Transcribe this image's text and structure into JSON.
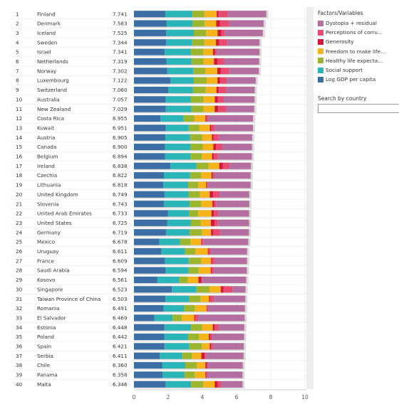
{
  "legend": {
    "title": "Factors/Variables",
    "items": [
      {
        "label": "Dystopia + residual",
        "color": "#b46e9f"
      },
      {
        "label": "Perceptions of corru...",
        "color": "#e84a70"
      },
      {
        "label": "Generosity",
        "color": "#d3183a"
      },
      {
        "label": "Freedom to make life...",
        "color": "#f4b41a"
      },
      {
        "label": "Healthy life expecta...",
        "color": "#9bb62e"
      },
      {
        "label": "Social support",
        "color": "#2ab5b8"
      },
      {
        "label": "Log GDP per capita",
        "color": "#3a6ea5"
      }
    ]
  },
  "search": {
    "label": "Search by country",
    "placeholder": ""
  },
  "chart_data": {
    "type": "bar",
    "orientation": "horizontal",
    "stacked": true,
    "xlim": [
      0,
      10
    ],
    "x_ticks": [
      "0",
      "2",
      "4",
      "6",
      "8",
      "10"
    ],
    "series_order": [
      "Log GDP per capita",
      "Social support",
      "Healthy life expecta...",
      "Freedom to make life...",
      "Generosity",
      "Perceptions of corru...",
      "Dystopia + residual"
    ],
    "rows": [
      {
        "rank": "1",
        "country": "Finland",
        "score": "7.741",
        "parts": [
          1.84,
          1.57,
          0.7,
          0.73,
          0.1,
          0.55,
          2.25
        ]
      },
      {
        "rank": "2",
        "country": "Denmark",
        "score": "7.583",
        "parts": [
          1.91,
          1.52,
          0.7,
          0.68,
          0.21,
          0.52,
          2.04
        ]
      },
      {
        "rank": "3",
        "country": "Iceland",
        "score": "7.525",
        "parts": [
          1.88,
          1.62,
          0.72,
          0.67,
          0.22,
          0.19,
          2.23
        ]
      },
      {
        "rank": "4",
        "country": "Sweden",
        "score": "7.344",
        "parts": [
          1.88,
          1.5,
          0.73,
          0.68,
          0.19,
          0.47,
          1.89
        ]
      },
      {
        "rank": "5",
        "country": "Israel",
        "score": "7.341",
        "parts": [
          1.8,
          1.51,
          0.74,
          0.57,
          0.11,
          0.11,
          2.5
        ]
      },
      {
        "rank": "6",
        "country": "Netherlands",
        "score": "7.319",
        "parts": [
          1.9,
          1.46,
          0.7,
          0.62,
          0.21,
          0.38,
          2.05
        ]
      },
      {
        "rank": "7",
        "country": "Norway",
        "score": "7.302",
        "parts": [
          1.95,
          1.52,
          0.7,
          0.7,
          0.21,
          0.47,
          1.75
        ]
      },
      {
        "rank": "8",
        "country": "Luxembourg",
        "score": "7.122",
        "parts": [
          2.14,
          1.36,
          0.75,
          0.63,
          0.16,
          0.39,
          1.69
        ]
      },
      {
        "rank": "9",
        "country": "Switzerland",
        "score": "7.060",
        "parts": [
          2.0,
          1.44,
          0.75,
          0.64,
          0.12,
          0.45,
          1.66
        ]
      },
      {
        "rank": "10",
        "country": "Australia",
        "score": "7.057",
        "parts": [
          1.85,
          1.48,
          0.74,
          0.66,
          0.17,
          0.35,
          1.8
        ]
      },
      {
        "rank": "11",
        "country": "New Zealand",
        "score": "7.029",
        "parts": [
          1.86,
          1.5,
          0.7,
          0.66,
          0.2,
          0.48,
          1.63
        ]
      },
      {
        "rank": "12",
        "country": "Costa Rica",
        "score": "6.955",
        "parts": [
          1.55,
          1.33,
          0.64,
          0.66,
          0.06,
          0.09,
          2.63
        ]
      },
      {
        "rank": "13",
        "country": "Kuwait",
        "score": "6.951",
        "parts": [
          1.86,
          1.34,
          0.63,
          0.61,
          0.09,
          0.18,
          2.25
        ]
      },
      {
        "rank": "14",
        "country": "Austria",
        "score": "6.905",
        "parts": [
          1.84,
          1.44,
          0.71,
          0.57,
          0.1,
          0.29,
          1.96
        ]
      },
      {
        "rank": "15",
        "country": "Canada",
        "score": "6.900",
        "parts": [
          1.81,
          1.48,
          0.73,
          0.62,
          0.16,
          0.37,
          1.73
        ]
      },
      {
        "rank": "16",
        "country": "Belgium",
        "score": "6.894",
        "parts": [
          1.82,
          1.47,
          0.68,
          0.6,
          0.1,
          0.22,
          2.0
        ]
      },
      {
        "rank": "17",
        "country": "Ireland",
        "score": "6.838",
        "parts": [
          2.13,
          1.52,
          0.71,
          0.63,
          0.2,
          0.4,
          1.25
        ]
      },
      {
        "rank": "18",
        "country": "Czechia",
        "score": "6.822",
        "parts": [
          1.75,
          1.53,
          0.65,
          0.6,
          0.07,
          0.09,
          2.13
        ]
      },
      {
        "rank": "19",
        "country": "Lithuania",
        "score": "6.818",
        "parts": [
          1.72,
          1.45,
          0.59,
          0.45,
          0.02,
          0.07,
          2.52
        ]
      },
      {
        "rank": "20",
        "country": "United Kingdom",
        "score": "6.749",
        "parts": [
          1.79,
          1.4,
          0.66,
          0.58,
          0.2,
          0.37,
          1.74
        ]
      },
      {
        "rank": "21",
        "country": "Slovenia",
        "score": "6.743",
        "parts": [
          1.76,
          1.5,
          0.67,
          0.66,
          0.11,
          0.1,
          1.94
        ]
      },
      {
        "rank": "22",
        "country": "United Arab Emirates",
        "score": "6.733",
        "parts": [
          1.98,
          1.23,
          0.55,
          0.77,
          0.14,
          0.26,
          1.8
        ]
      },
      {
        "rank": "23",
        "country": "United States",
        "score": "6.725",
        "parts": [
          1.94,
          1.39,
          0.57,
          0.6,
          0.21,
          0.17,
          1.85
        ]
      },
      {
        "rank": "24",
        "country": "Germany",
        "score": "6.719",
        "parts": [
          1.87,
          1.39,
          0.7,
          0.55,
          0.13,
          0.39,
          1.69
        ]
      },
      {
        "rank": "25",
        "country": "Mexico",
        "score": "6.678",
        "parts": [
          1.49,
          1.2,
          0.6,
          0.63,
          0.03,
          0.1,
          2.63
        ]
      },
      {
        "rank": "26",
        "country": "Uruguay",
        "score": "6.611",
        "parts": [
          1.6,
          1.38,
          0.61,
          0.73,
          0.05,
          0.14,
          2.1
        ]
      },
      {
        "rank": "27",
        "country": "France",
        "score": "6.609",
        "parts": [
          1.81,
          1.39,
          0.72,
          0.59,
          0.06,
          0.17,
          1.87
        ]
      },
      {
        "rank": "28",
        "country": "Saudi Arabia",
        "score": "6.594",
        "parts": [
          1.85,
          1.34,
          0.59,
          0.71,
          0.05,
          0.14,
          1.92
        ]
      },
      {
        "rank": "29",
        "country": "Kosovo",
        "score": "6.561",
        "parts": [
          1.37,
          1.28,
          0.5,
          0.62,
          0.18,
          0.04,
          2.57
        ]
      },
      {
        "rank": "30",
        "country": "Singapore",
        "score": "6.523",
        "parts": [
          2.22,
          1.42,
          0.78,
          0.66,
          0.16,
          0.52,
          0.76
        ]
      },
      {
        "rank": "31",
        "country": "Taiwan Province of China",
        "score": "6.503",
        "parts": [
          1.84,
          1.39,
          0.66,
          0.5,
          0.06,
          0.22,
          1.84
        ]
      },
      {
        "rank": "32",
        "country": "Romania",
        "score": "6.491",
        "parts": [
          1.74,
          1.19,
          0.62,
          0.7,
          0.03,
          0.04,
          2.17
        ]
      },
      {
        "rank": "33",
        "country": "El Salvador",
        "score": "6.469",
        "parts": [
          1.19,
          1.07,
          0.53,
          0.73,
          0.05,
          0.18,
          2.72
        ]
      },
      {
        "rank": "34",
        "country": "Estonia",
        "score": "6.448",
        "parts": [
          1.78,
          1.56,
          0.65,
          0.62,
          0.1,
          0.23,
          1.51
        ]
      },
      {
        "rank": "35",
        "country": "Poland",
        "score": "6.442",
        "parts": [
          1.77,
          1.4,
          0.63,
          0.58,
          0.09,
          0.12,
          1.85
        ]
      },
      {
        "rank": "36",
        "country": "Spain",
        "score": "6.421",
        "parts": [
          1.78,
          1.46,
          0.72,
          0.47,
          0.08,
          0.11,
          1.8
        ]
      },
      {
        "rank": "37",
        "country": "Serbia",
        "score": "6.411",
        "parts": [
          1.51,
          1.3,
          0.58,
          0.55,
          0.19,
          0.06,
          2.22
        ]
      },
      {
        "rank": "38",
        "country": "Chile",
        "score": "6.360",
        "parts": [
          1.66,
          1.34,
          0.68,
          0.5,
          0.1,
          0.05,
          2.03
        ]
      },
      {
        "rank": "39",
        "country": "Panama",
        "score": "6.358",
        "parts": [
          1.67,
          1.27,
          0.61,
          0.63,
          0.05,
          0.04,
          2.08
        ]
      },
      {
        "rank": "40",
        "country": "Malta",
        "score": "6.346",
        "parts": [
          1.85,
          1.49,
          0.7,
          0.68,
          0.18,
          0.2,
          1.25
        ]
      }
    ]
  }
}
